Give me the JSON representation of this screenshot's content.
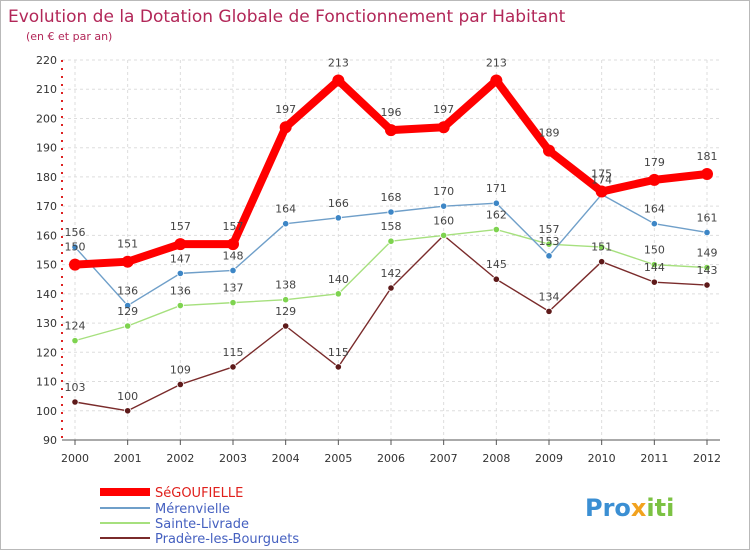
{
  "chart_data": {
    "type": "line",
    "title": "Evolution de la Dotation Globale de Fonctionnement par Habitant",
    "subtitle": "(en € et par an)",
    "x": [
      "2000",
      "2001",
      "2002",
      "2003",
      "2004",
      "2005",
      "2006",
      "2007",
      "2008",
      "2009",
      "2010",
      "2011",
      "2012"
    ],
    "ylim": [
      90,
      220
    ],
    "yticks": [
      90,
      100,
      110,
      120,
      130,
      140,
      150,
      160,
      170,
      180,
      190,
      200,
      210,
      220
    ],
    "ytick_labels": [
      "90",
      "100",
      "110",
      "120",
      "130",
      "140",
      "150",
      "160",
      "170",
      "180",
      "190",
      "200",
      "210",
      "220"
    ],
    "grid": true,
    "series": [
      {
        "name": "SéGOUFIELLE",
        "color": "#ff0000",
        "marker": "#ff0000",
        "values": [
          150,
          151,
          157,
          157,
          197,
          213,
          196,
          197,
          213,
          189,
          175,
          179,
          181
        ],
        "labels": [
          "150",
          "151",
          "157",
          "157",
          "197",
          "213",
          "196",
          "197",
          "213",
          "189",
          "175",
          "179",
          "181"
        ]
      },
      {
        "name": "Mérenvielle",
        "color": "#6f9fc9",
        "marker": "#3d86c6",
        "values": [
          156,
          136,
          147,
          148,
          164,
          166,
          168,
          170,
          171,
          153,
          174,
          164,
          161
        ],
        "labels": [
          "156",
          "136",
          "147",
          "148",
          "164",
          "166",
          "168",
          "170",
          "171",
          "153",
          "174",
          "164",
          "161"
        ]
      },
      {
        "name": "Sainte-Livrade",
        "color": "#a6e07e",
        "marker": "#7ed34f",
        "values": [
          124,
          129,
          136,
          137,
          138,
          140,
          158,
          160,
          162,
          157,
          156,
          150,
          149
        ],
        "labels": [
          "124",
          "129",
          "136",
          "137",
          "138",
          "140",
          "158",
          "",
          "162",
          "157",
          "",
          "150",
          "149"
        ]
      },
      {
        "name": "Pradère-les-Bourguets",
        "color": "#7a2b2b",
        "marker": "#5e1a1a",
        "values": [
          103,
          100,
          109,
          115,
          129,
          115,
          142,
          160,
          145,
          134,
          151,
          144,
          143
        ],
        "labels": [
          "103",
          "100",
          "109",
          "115",
          "129",
          "115",
          "142",
          "160",
          "145",
          "134",
          "151",
          "144",
          "143"
        ]
      }
    ]
  },
  "logo": {
    "text_p": "Pro",
    "text_x": "x",
    "text_iti": "iti"
  }
}
